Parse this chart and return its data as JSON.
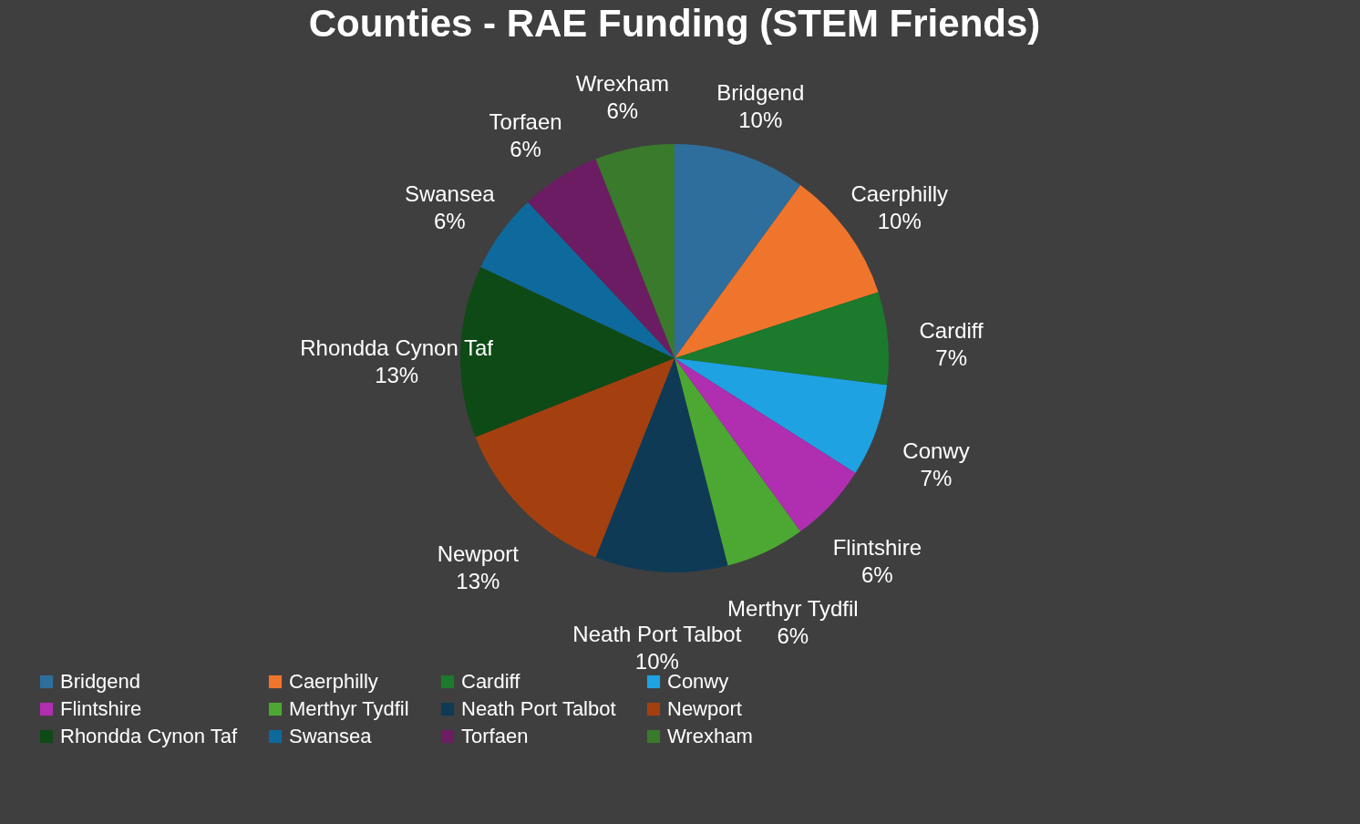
{
  "chart_data": {
    "type": "pie",
    "title": "Counties - RAE Funding (STEM Friends)",
    "categories": [
      "Bridgend",
      "Caerphilly",
      "Cardiff",
      "Conwy",
      "Flintshire",
      "Merthyr Tydfil",
      "Neath Port Talbot",
      "Newport",
      "Rhondda Cynon Taf",
      "Swansea",
      "Torfaen",
      "Wrexham"
    ],
    "values": [
      10,
      10,
      7,
      7,
      6,
      6,
      10,
      13,
      13,
      6,
      6,
      6
    ],
    "colors": [
      "#2e6e9c",
      "#f0752c",
      "#1b7a2c",
      "#1ea2e2",
      "#b02eb0",
      "#4ca832",
      "#0e3a56",
      "#a4400f",
      "#0e4a16",
      "#0e6a9c",
      "#6c1c62",
      "#3a7a2c"
    ],
    "value_labels": [
      "10%",
      "10%",
      "7%",
      "7%",
      "6%",
      "6%",
      "10%",
      "13%",
      "13%",
      "6%",
      "6%",
      "6%"
    ],
    "legend": "bottom"
  }
}
